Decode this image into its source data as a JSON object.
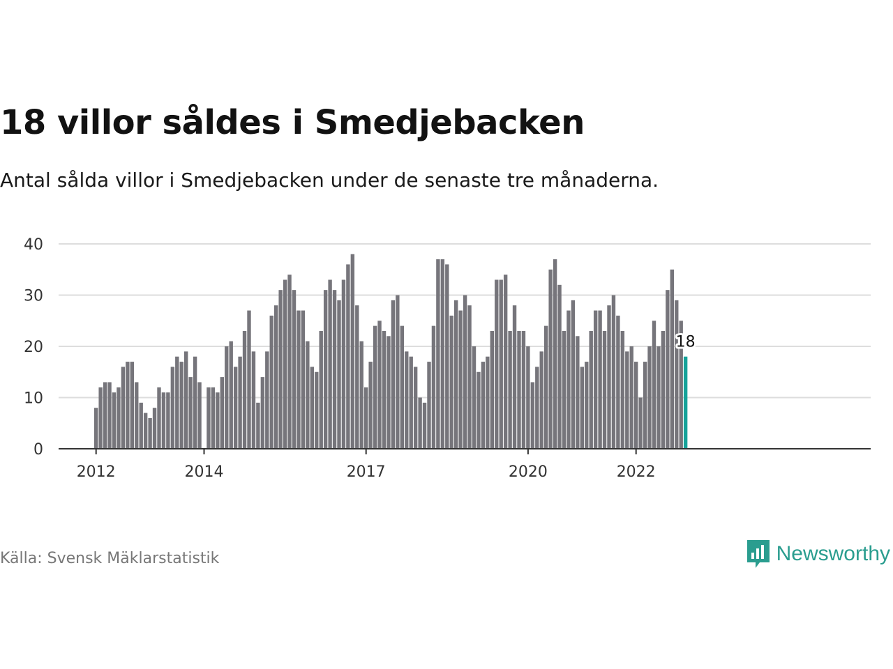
{
  "title": "18 villor såldes i Smedjebacken",
  "subtitle": "Antal sålda villor i Smedjebacken under de senaste tre månaderna.",
  "source": "Källa: Svensk Mäklarstatistik",
  "brand": {
    "name": "Newsworthy",
    "icon": "newsworthy-logo-icon",
    "color": "#2a9d8f"
  },
  "colors": {
    "bar": "#76757b",
    "highlight": "#16a39a",
    "grid": "#dddddd",
    "axis": "#333333"
  },
  "chart_data": {
    "type": "bar",
    "x_start": "2012-01",
    "frequency": "monthly",
    "values": [
      8,
      12,
      13,
      13,
      11,
      12,
      16,
      17,
      17,
      13,
      9,
      7,
      6,
      8,
      12,
      11,
      11,
      16,
      18,
      17,
      19,
      14,
      18,
      13,
      0,
      12,
      12,
      11,
      14,
      20,
      21,
      16,
      18,
      23,
      27,
      19,
      9,
      14,
      19,
      26,
      28,
      31,
      33,
      34,
      31,
      27,
      27,
      21,
      16,
      15,
      23,
      31,
      33,
      31,
      29,
      33,
      36,
      38,
      28,
      21,
      12,
      17,
      24,
      25,
      23,
      22,
      29,
      30,
      24,
      19,
      18,
      16,
      10,
      9,
      17,
      24,
      37,
      37,
      36,
      26,
      29,
      27,
      30,
      28,
      20,
      15,
      17,
      18,
      23,
      33,
      33,
      34,
      23,
      28,
      23,
      23,
      20,
      13,
      16,
      19,
      24,
      35,
      37,
      32,
      23,
      27,
      29,
      22,
      16,
      17,
      23,
      27,
      27,
      23,
      28,
      30,
      26,
      23,
      19,
      20,
      17,
      10,
      17,
      20,
      25,
      20,
      23,
      31,
      35,
      29,
      25,
      18
    ],
    "highlight_last": true,
    "highlight_label": "18",
    "ylim": [
      0,
      40
    ],
    "yticks": [
      0,
      10,
      20,
      30,
      40
    ],
    "xticks": [
      {
        "label": "2012",
        "index": 0
      },
      {
        "label": "2014",
        "index": 24
      },
      {
        "label": "2017",
        "index": 60
      },
      {
        "label": "2020",
        "index": 96
      },
      {
        "label": "2022",
        "index": 120
      }
    ],
    "grid": true
  }
}
